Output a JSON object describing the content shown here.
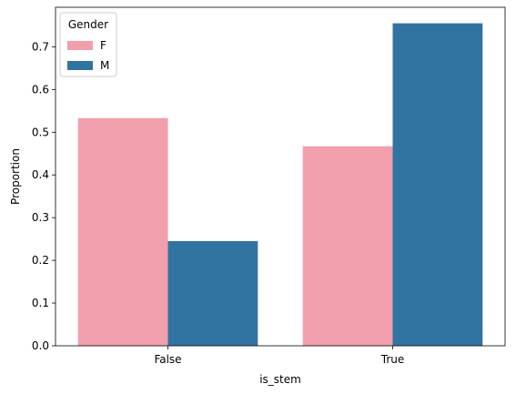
{
  "chart_data": {
    "type": "bar",
    "categories": [
      "False",
      "True"
    ],
    "series": [
      {
        "name": "F",
        "values": [
          0.533,
          0.467
        ],
        "color": "#f19fad"
      },
      {
        "name": "M",
        "values": [
          0.245,
          0.755
        ],
        "color": "#3274a1"
      }
    ],
    "xlabel": "is_stem",
    "ylabel": "Proportion",
    "ylim": [
      0,
      0.7925
    ],
    "yticks": [
      "0.0",
      "0.1",
      "0.2",
      "0.3",
      "0.4",
      "0.5",
      "0.6",
      "0.7"
    ],
    "legend": {
      "title": "Gender",
      "placement": "top-left"
    },
    "grid": false
  }
}
